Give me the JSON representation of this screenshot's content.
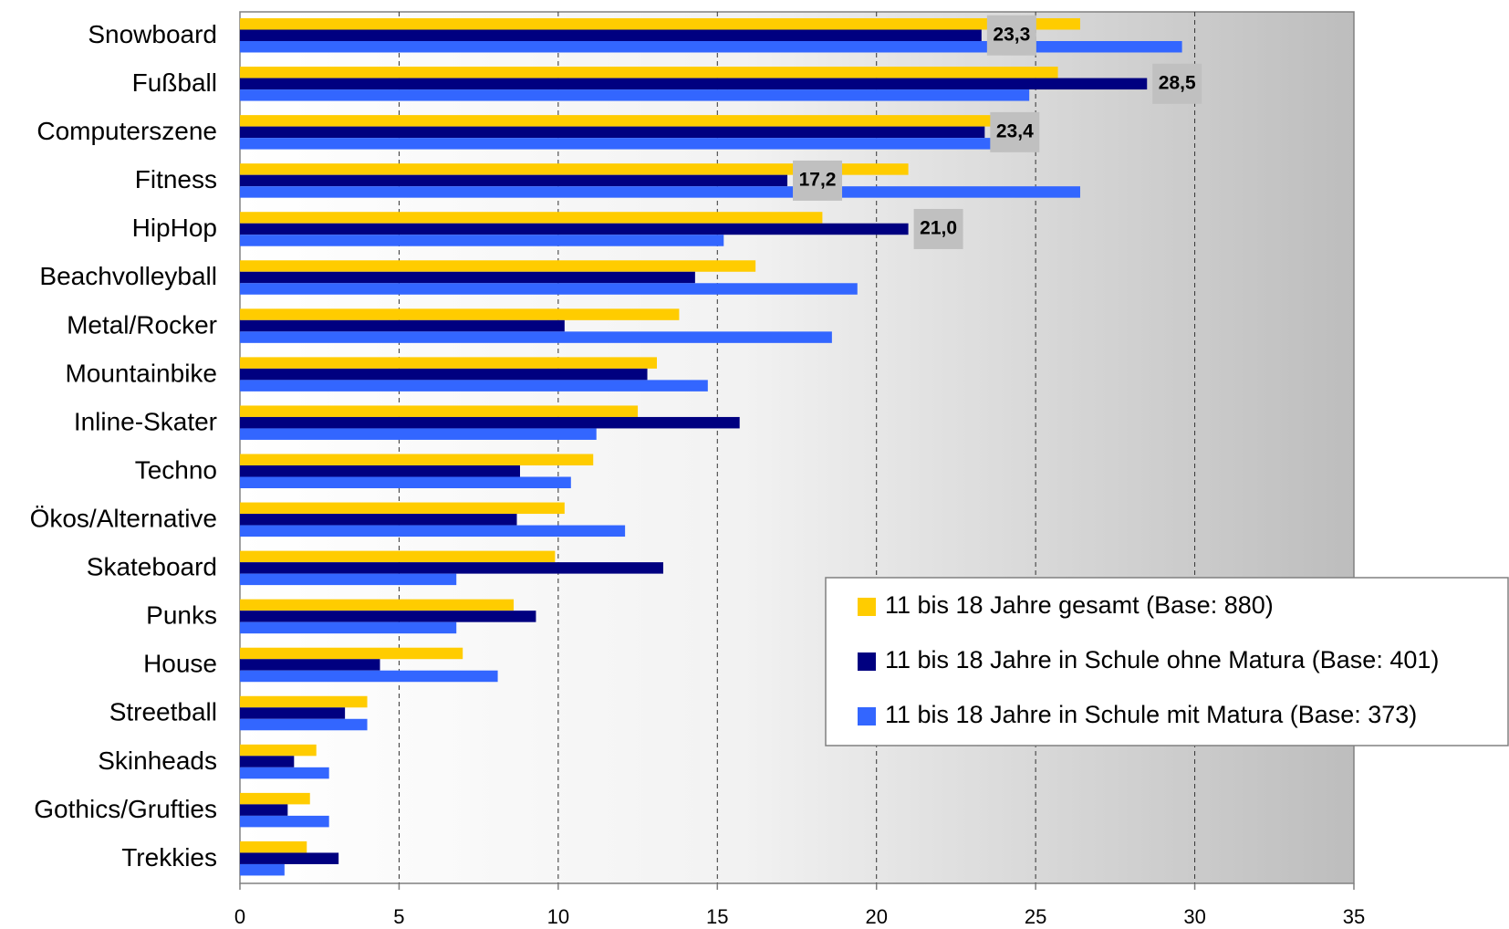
{
  "chart_data": {
    "type": "barh",
    "categories": [
      "Snowboard",
      "Fußball",
      "Computerszene",
      "Fitness",
      "HipHop",
      "Beachvolleyball",
      "Metal/Rocker",
      "Mountainbike",
      "Inline-Skater",
      "Techno",
      "Ökos/Alternative",
      "Skateboard",
      "Punks",
      "House",
      "Streetball",
      "Skinheads",
      "Gothics/Grufties",
      "Trekkies"
    ],
    "series": [
      {
        "name": "11 bis 18 Jahre gesamt (Base: 880)",
        "color": "#ffcc00",
        "values": [
          26.4,
          25.7,
          23.9,
          21.0,
          18.3,
          16.2,
          13.8,
          13.1,
          12.5,
          11.1,
          10.2,
          9.9,
          8.6,
          7.0,
          4.0,
          2.4,
          2.2,
          2.1
        ]
      },
      {
        "name": "11 bis 18 Jahre in Schule ohne Matura (Base: 401)",
        "color": "#000080",
        "values": [
          23.3,
          28.5,
          23.4,
          17.2,
          21.0,
          14.3,
          10.2,
          12.8,
          15.7,
          8.8,
          8.7,
          13.3,
          9.3,
          4.4,
          3.3,
          1.7,
          1.5,
          3.1
        ],
        "value_labels": [
          "23,3",
          "28,5",
          "23,4",
          "17,2",
          "21,0",
          null,
          null,
          null,
          null,
          null,
          null,
          null,
          null,
          null,
          null,
          null,
          null,
          null
        ]
      },
      {
        "name": "11 bis 18 Jahre in Schule mit Matura (Base: 373)",
        "color": "#3366ff",
        "values": [
          29.6,
          24.8,
          24.4,
          26.4,
          15.2,
          19.4,
          18.6,
          14.7,
          11.2,
          10.4,
          12.1,
          6.8,
          6.8,
          8.1,
          4.0,
          2.8,
          2.8,
          1.4
        ]
      }
    ],
    "xlim": [
      0,
      35
    ],
    "xticks": [
      0,
      5,
      10,
      15,
      20,
      25,
      30,
      35
    ],
    "grid": true
  }
}
